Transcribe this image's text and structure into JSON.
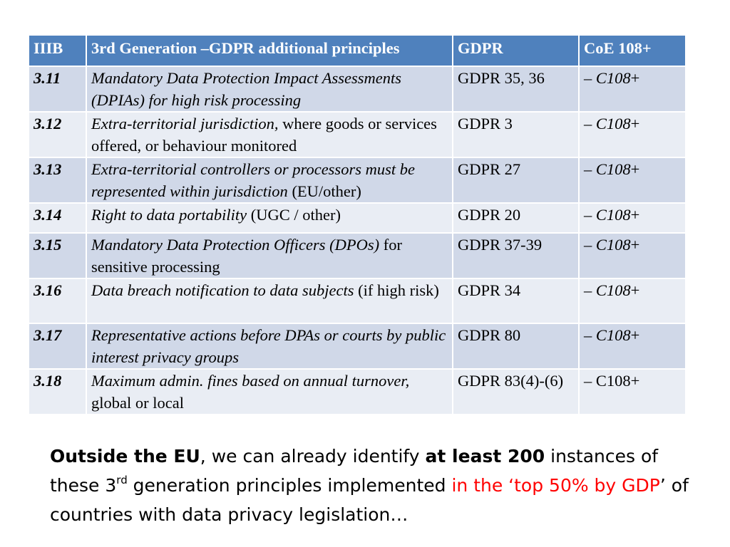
{
  "table": {
    "headers": [
      "IIIB",
      "3rd Generation –GDPR additional principles",
      "GDPR",
      "CoE 108+"
    ],
    "rows": [
      {
        "num": "3.11",
        "principle_italic": "Mandatory Data Protection Impact Assessments (DPIAs) for high risk processing",
        "principle_plain": "",
        "gdpr": "GDPR 35, 36",
        "coe_dash": "– ",
        "coe_ref": "C108",
        "coe_plus": "+"
      },
      {
        "num": "3.12",
        "principle_italic": "Extra-territorial jurisdiction,",
        "principle_plain": " where goods or services offered, or behaviour monitored",
        "gdpr": "GDPR 3",
        "coe_dash": "– ",
        "coe_ref": "C108",
        "coe_plus": "+"
      },
      {
        "num": "3.13",
        "principle_italic": "Extra-territorial controllers or processors must be represented within jurisdiction",
        "principle_plain": "  (EU/other)",
        "gdpr": "GDPR 27",
        "coe_dash": "– ",
        "coe_ref": "C108",
        "coe_plus": "+"
      },
      {
        "num": "3.14",
        "principle_italic": "Right to data portability",
        "principle_plain": " (UGC / other)",
        "gdpr": "GDPR 20",
        "coe_dash": "– ",
        "coe_ref": "C108",
        "coe_plus": "+"
      },
      {
        "num": "3.15",
        "principle_italic": "Mandatory Data Protection Officers (DPOs)",
        "principle_plain": " for sensitive processing",
        "gdpr": "GDPR 37-39",
        "coe_dash": "– ",
        "coe_ref": "C108",
        "coe_plus": "+"
      },
      {
        "num": "3.16",
        "principle_italic": "Data breach notification to data subjects",
        "principle_plain": " (if high risk)",
        "gdpr": "GDPR 34",
        "coe_dash": "– ",
        "coe_ref": "C108",
        "coe_plus": "+"
      },
      {
        "num": "3.17",
        "principle_italic": "Representative actions before DPAs or courts by public interest privacy groups",
        "principle_plain": "",
        "gdpr": "GDPR 80",
        "coe_dash": "– ",
        "coe_ref": "C108",
        "coe_plus": "+"
      },
      {
        "num": "3.18",
        "principle_italic": "Maximum admin. fines based on annual turnover,",
        "principle_plain": " global or local",
        "gdpr": "GDPR 83(4)-(6)",
        "coe_dash": "– C108+",
        "coe_ref": "",
        "coe_plus": ""
      }
    ]
  },
  "note": {
    "bold1": "Outside the EU",
    "t1": ", we can already identify ",
    "bold2": "at least 200",
    "t2": " instances of these 3",
    "sup": "rd",
    "t3": " generation principles implemented ",
    "red1": "in the ‘top 50% by GDP",
    "t4": "’ of countries with data privacy legislation…"
  },
  "colors": {
    "header_bg": "#4f81bd",
    "row_odd": "#d0d8e8",
    "row_even": "#e9edf4",
    "highlight_text": "#ff0000"
  }
}
